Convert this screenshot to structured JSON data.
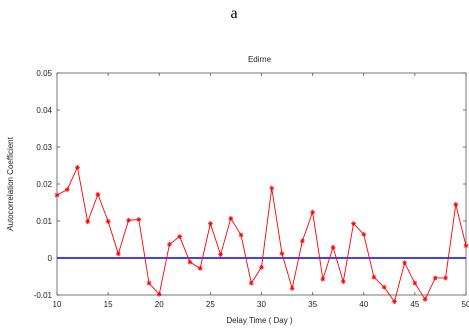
{
  "panel_label": "a",
  "chart_data": {
    "type": "line",
    "title": "Edirne",
    "xlabel": "Delay Time ( Day )",
    "ylabel": "Autocorrelation Coefficient",
    "xlim": [
      10,
      50
    ],
    "ylim": [
      -0.01,
      0.05
    ],
    "xticks": [
      10,
      15,
      20,
      25,
      30,
      35,
      40,
      45,
      50
    ],
    "yticks": [
      -0.01,
      0,
      0.01,
      0.02,
      0.03,
      0.04,
      0.05
    ],
    "ytick_labels": [
      "-0.01",
      "0",
      "0.01",
      "0.02",
      "0.03",
      "0.04",
      "0.05"
    ],
    "grid": false,
    "reference_line": {
      "y": 0,
      "color": "#0000ff"
    },
    "series": [
      {
        "color": "#ff0000",
        "marker": "star",
        "x": [
          10,
          11,
          12,
          13,
          14,
          15,
          16,
          17,
          18,
          19,
          20,
          21,
          22,
          23,
          24,
          25,
          26,
          27,
          28,
          29,
          30,
          31,
          32,
          33,
          34,
          35,
          36,
          37,
          38,
          39,
          40,
          41,
          42,
          43,
          44,
          45,
          46,
          47,
          48,
          49,
          50
        ],
        "y": [
          0.017,
          0.0185,
          0.0245,
          0.0098,
          0.0172,
          0.0099,
          0.0011,
          0.0102,
          0.0104,
          -0.0068,
          -0.0098,
          0.0037,
          0.0058,
          -0.0011,
          -0.0028,
          0.0093,
          0.0009,
          0.0107,
          0.0062,
          -0.0068,
          -0.0025,
          0.0189,
          0.0012,
          -0.0082,
          0.0046,
          0.0124,
          -0.0057,
          0.0029,
          -0.0064,
          0.0093,
          0.0064,
          -0.0052,
          -0.0079,
          -0.0118,
          -0.0013,
          -0.0068,
          -0.0112,
          -0.0054,
          -0.0054,
          0.0145,
          0.0033
        ]
      }
    ]
  }
}
